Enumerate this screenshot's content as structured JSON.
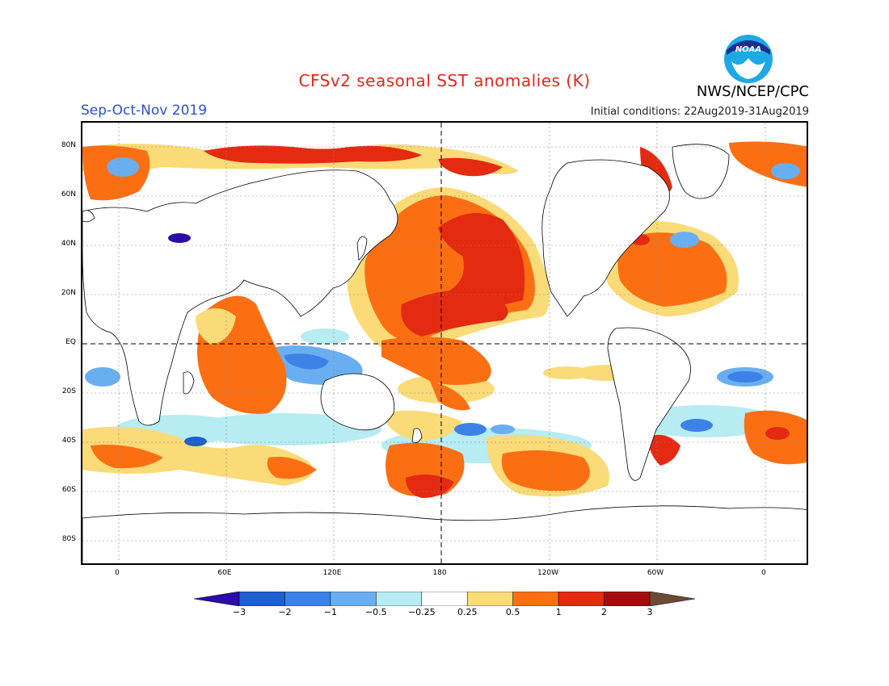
{
  "header": {
    "title": "CFSv2 seasonal SST anomalies (K)",
    "season": "Sep-Oct-Nov 2019",
    "agency": "NWS/NCEP/CPC",
    "initial_conditions": "Initial conditions: 22Aug2019-31Aug2019",
    "logo_text": "NOAA"
  },
  "map": {
    "lat_labels": [
      "80N",
      "60N",
      "40N",
      "20N",
      "EQ",
      "20S",
      "40S",
      "60S",
      "80S"
    ],
    "lon_labels": [
      "0",
      "60E",
      "120E",
      "180",
      "120W",
      "60W",
      "0"
    ]
  },
  "colorbar": {
    "tick_labels": [
      "-3",
      "-2",
      "-1",
      "-0.5",
      "-0.25",
      "0.25",
      "0.5",
      "1",
      "2",
      "3"
    ],
    "colors": [
      "#2c0ba8",
      "#1d5ed0",
      "#3c82e6",
      "#6aaef2",
      "#b6ecf2",
      "#ffffff",
      "#fadb78",
      "#fb6f12",
      "#e42a11",
      "#a50d0d",
      "#6e4a34"
    ]
  },
  "colors": {
    "title": "#e8261c",
    "season": "#2b4fd8",
    "land": "#ffffff",
    "coast": "#000000"
  }
}
